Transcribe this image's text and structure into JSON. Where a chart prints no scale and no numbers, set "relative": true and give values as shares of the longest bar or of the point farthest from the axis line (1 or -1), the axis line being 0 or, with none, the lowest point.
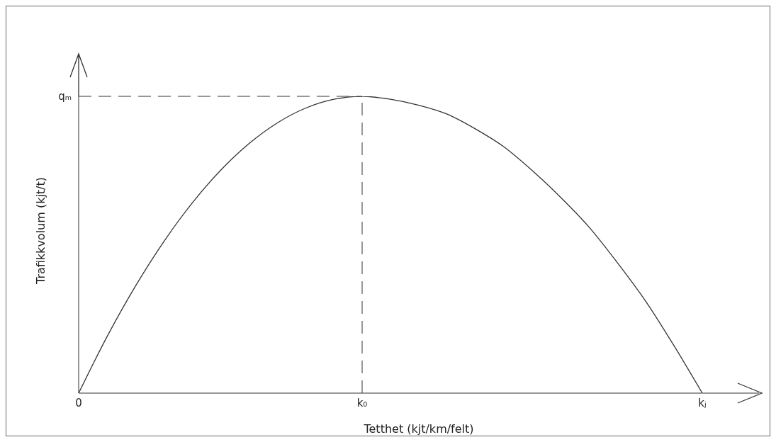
{
  "chart_data": {
    "type": "line",
    "relative": true,
    "xlabel": "Tetthet (kjt/km/felt)",
    "ylabel": "Trafikkvolum (kjt/t)",
    "categories": [
      "0",
      null,
      null,
      null,
      null,
      null,
      null,
      null,
      null,
      null,
      "k₀",
      null,
      null,
      null,
      null,
      null,
      null,
      null,
      null,
      null,
      null,
      null,
      "kⱼ",
      null,
      null
    ],
    "series": [
      {
        "color": "#333333",
        "values": [
          0,
          0.19,
          0.36,
          0.51,
          0.64,
          0.75,
          0.84,
          0.91,
          0.96,
          0.99,
          1,
          0.99,
          0.97,
          0.94,
          0.89,
          0.83,
          0.75,
          0.66,
          0.56,
          0.44,
          0.31,
          0.16,
          0,
          null,
          null
        ]
      }
    ],
    "ref_lines": [
      {
        "axis": "y",
        "value": 1,
        "label": "qₘ",
        "line_style": "dashed"
      },
      {
        "axis": "x",
        "value": "k₀",
        "line_style": "dashed"
      }
    ],
    "grid": false,
    "legend": false,
    "marker": "none",
    "line_style": "solid"
  }
}
